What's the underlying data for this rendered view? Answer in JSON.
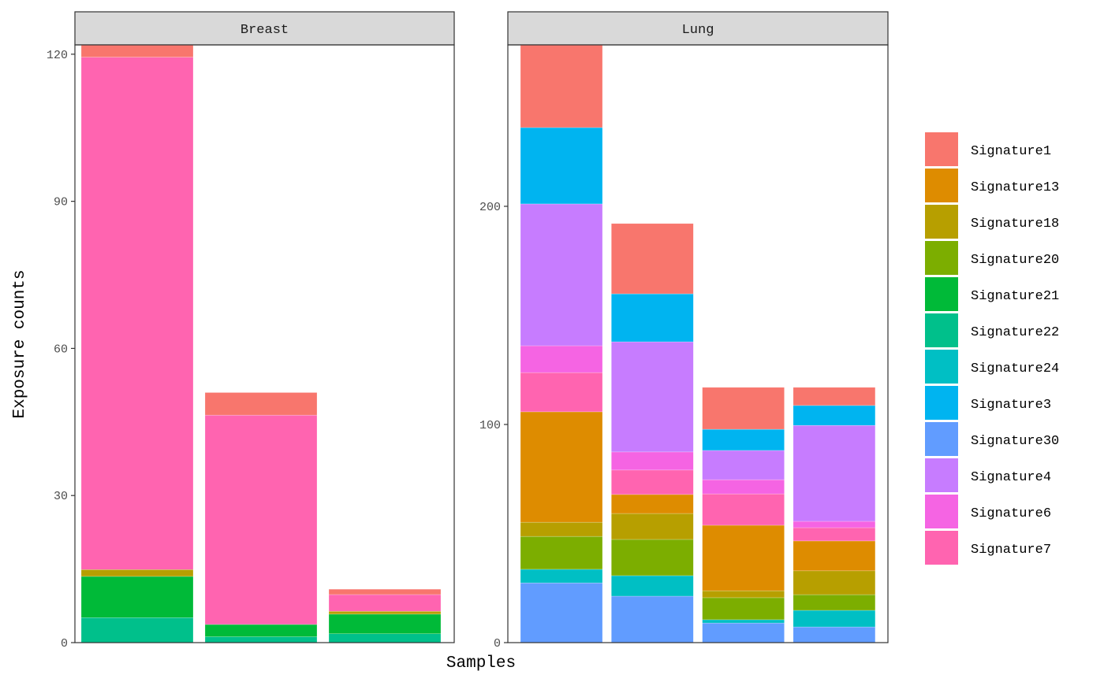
{
  "chart_data": {
    "type": "bar",
    "stacked": true,
    "xlabel": "Samples",
    "ylabel": "Exposure counts",
    "legend_position": "right",
    "grid": false,
    "legend": [
      "Signature1",
      "Signature13",
      "Signature18",
      "Signature20",
      "Signature21",
      "Signature22",
      "Signature24",
      "Signature3",
      "Signature30",
      "Signature4",
      "Signature6",
      "Signature7"
    ],
    "colors": {
      "Signature1": "#F8766D",
      "Signature13": "#DE8C00",
      "Signature18": "#B79F00",
      "Signature20": "#7CAE00",
      "Signature21": "#00BA38",
      "Signature22": "#00C08B",
      "Signature24": "#00BFC4",
      "Signature3": "#00B4F0",
      "Signature30": "#619CFF",
      "Signature4": "#C77CFF",
      "Signature6": "#F564E3",
      "Signature7": "#FF64B0"
    },
    "panels": [
      {
        "title": "Breast",
        "ylim": [
          0,
          121.9
        ],
        "yticks": [
          0,
          30,
          60,
          90,
          120
        ],
        "samples": [
          {
            "segments": [
              [
                "Signature22",
                5.1
              ],
              [
                "Signature21",
                8.4
              ],
              [
                "Signature18",
                1.4
              ],
              [
                "Signature7",
                104.5
              ],
              [
                "Signature1",
                2.5
              ]
            ]
          },
          {
            "segments": [
              [
                "Signature22",
                1.2
              ],
              [
                "Signature21",
                2.5
              ],
              [
                "Signature7",
                42.7
              ],
              [
                "Signature1",
                4.6
              ]
            ]
          },
          {
            "segments": [
              [
                "Signature22",
                1.8
              ],
              [
                "Signature21",
                4.0
              ],
              [
                "Signature18",
                0.6
              ],
              [
                "Signature7",
                3.4
              ],
              [
                "Signature1",
                1.1
              ]
            ]
          }
        ]
      },
      {
        "title": "Lung",
        "ylim": [
          0,
          274
        ],
        "yticks": [
          0,
          100,
          200
        ],
        "samples": [
          {
            "segments": [
              [
                "Signature30",
                27.4
              ],
              [
                "Signature24",
                6.2
              ],
              [
                "Signature20",
                15.1
              ],
              [
                "Signature18",
                6.5
              ],
              [
                "Signature13",
                50.6
              ],
              [
                "Signature7",
                18.0
              ],
              [
                "Signature6",
                12.3
              ],
              [
                "Signature4",
                65.0
              ],
              [
                "Signature3",
                35.0
              ],
              [
                "Signature1",
                37.9
              ]
            ]
          },
          {
            "segments": [
              [
                "Signature30",
                21.3
              ],
              [
                "Signature24",
                9.4
              ],
              [
                "Signature20",
                16.6
              ],
              [
                "Signature18",
                11.9
              ],
              [
                "Signature13",
                8.7
              ],
              [
                "Signature7",
                11.2
              ],
              [
                "Signature6",
                8.3
              ],
              [
                "Signature4",
                50.5
              ],
              [
                "Signature3",
                22.0
              ],
              [
                "Signature1",
                32.2
              ]
            ]
          },
          {
            "segments": [
              [
                "Signature30",
                9.0
              ],
              [
                "Signature24",
                1.5
              ],
              [
                "Signature20",
                10.1
              ],
              [
                "Signature18",
                3.2
              ],
              [
                "Signature13",
                30.0
              ],
              [
                "Signature7",
                14.4
              ],
              [
                "Signature6",
                6.5
              ],
              [
                "Signature4",
                13.4
              ],
              [
                "Signature3",
                9.7
              ],
              [
                "Signature1",
                19.2
              ]
            ]
          },
          {
            "segments": [
              [
                "Signature30",
                7.2
              ],
              [
                "Signature24",
                7.6
              ],
              [
                "Signature20",
                7.2
              ],
              [
                "Signature18",
                10.9
              ],
              [
                "Signature13",
                13.7
              ],
              [
                "Signature7",
                6.1
              ],
              [
                "Signature6",
                2.9
              ],
              [
                "Signature4",
                44.0
              ],
              [
                "Signature3",
                9.1
              ],
              [
                "Signature1",
                8.3
              ]
            ]
          }
        ]
      }
    ]
  }
}
